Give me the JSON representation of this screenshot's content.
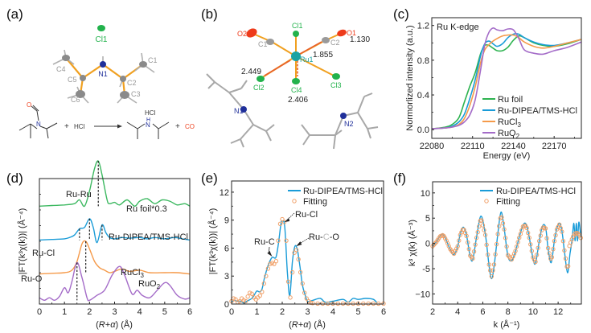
{
  "panels": {
    "a": {
      "label": "(a)",
      "atoms": {
        "cl1": "Cl1",
        "n1": "N1",
        "c1": "C1",
        "c2": "C2",
        "c3": "C3",
        "c4": "C4",
        "c5": "C5",
        "c6": "C6"
      },
      "reaction": {
        "reagent": "HCl",
        "plus1": "+",
        "plus2": "+",
        "product_salt": "HCl",
        "byproduct": "CO",
        "o_atom": "O",
        "n_atom": "N",
        "nh_h": "H",
        "nh_n": "N"
      },
      "colors": {
        "bond": "#f0a020",
        "carbon": "#8a8a8a",
        "nitrogen": "#1f2f9a",
        "chlorine": "#22b24c",
        "oxygen": "#ee4422"
      }
    },
    "b": {
      "label": "(b)",
      "atoms": {
        "o1": "O1",
        "o2": "O2",
        "c1": "C1",
        "c2": "C2",
        "ru1": "Ru1",
        "cl1": "Cl1",
        "cl2": "Cl2",
        "cl3": "Cl3",
        "cl4": "Cl4",
        "n1": "N1",
        "n2": "N2"
      },
      "distances": {
        "co": "1.130",
        "ru_c": "1.855",
        "ru_cl2": "2.449",
        "ru_cl4": "2.406"
      },
      "colors": {
        "ruthenium": "#1aa3a3",
        "arrow": "#e8602a"
      }
    }
  },
  "chart_data": [
    {
      "id": "c",
      "panel_label": "(c)",
      "type": "line",
      "title": "",
      "annotation": "Ru K-edge",
      "xlabel": "Energy (eV)",
      "ylabel": "Normorlized intensity (a.u.)",
      "xlim": [
        22080,
        22190
      ],
      "ylim": [
        -0.1,
        1.29
      ],
      "xticks": [
        22080,
        22110,
        22140,
        22170
      ],
      "xtick_labels": [
        "22080",
        "22110",
        "22140",
        "22170"
      ],
      "yticks": [
        0.0,
        0.4,
        0.8,
        1.2
      ],
      "ytick_labels": [
        "0.0",
        "0.4",
        "0.8",
        "1.2"
      ],
      "legend_position": "bottom-right",
      "series": [
        {
          "name": "Ru foil",
          "legend": "Ru foil",
          "color": "#2db350",
          "x": [
            22080,
            22090,
            22095,
            22100,
            22104,
            22108,
            22112,
            22116,
            22119,
            22122,
            22125,
            22128,
            22132,
            22136,
            22140,
            22144,
            22148,
            22155,
            22162,
            22170,
            22180,
            22190
          ],
          "y": [
            0.01,
            0.03,
            0.06,
            0.14,
            0.32,
            0.5,
            0.66,
            0.88,
            0.97,
            0.97,
            0.94,
            0.91,
            0.91,
            0.95,
            1.03,
            1.08,
            1.06,
            1.0,
            0.97,
            0.96,
            0.99,
            1.04
          ]
        },
        {
          "name": "Ru-DIPEA/TMS-HCl",
          "legend": "Ru-DIPEA/TMS-HCl",
          "color": "#1a9cd8",
          "x": [
            22080,
            22090,
            22095,
            22100,
            22104,
            22108,
            22112,
            22116,
            22119,
            22122,
            22125,
            22128,
            22132,
            22136,
            22140,
            22144,
            22148,
            22155,
            22162,
            22170,
            22180,
            22190
          ],
          "y": [
            0.01,
            0.02,
            0.04,
            0.09,
            0.18,
            0.36,
            0.58,
            0.86,
            0.99,
            1.02,
            0.99,
            0.96,
            0.99,
            1.06,
            1.1,
            1.1,
            1.06,
            1.01,
            0.98,
            0.97,
            1.0,
            1.04
          ]
        },
        {
          "name": "RuCl3",
          "legend": "RuCl₃",
          "legend_main": "RuCl",
          "legend_sub": "3",
          "color": "#f59a4a",
          "x": [
            22080,
            22090,
            22095,
            22100,
            22104,
            22108,
            22112,
            22116,
            22119,
            22122,
            22125,
            22128,
            22132,
            22136,
            22140,
            22144,
            22148,
            22155,
            22162,
            22170,
            22180,
            22190
          ],
          "y": [
            0.01,
            0.02,
            0.03,
            0.06,
            0.13,
            0.28,
            0.5,
            0.78,
            0.92,
            0.98,
            1.02,
            1.05,
            1.08,
            1.09,
            1.09,
            1.06,
            1.01,
            0.96,
            0.94,
            0.96,
            1.0,
            1.04
          ]
        },
        {
          "name": "RuO2",
          "legend": "RuO₂",
          "legend_main": "RuO",
          "legend_sub": "2",
          "color": "#a46cc8",
          "x": [
            22080,
            22090,
            22095,
            22100,
            22104,
            22108,
            22112,
            22116,
            22119,
            22122,
            22125,
            22128,
            22132,
            22136,
            22140,
            22144,
            22148,
            22155,
            22162,
            22170,
            22180,
            22190
          ],
          "y": [
            0.01,
            0.02,
            0.03,
            0.05,
            0.09,
            0.17,
            0.35,
            0.7,
            0.98,
            1.12,
            1.17,
            1.15,
            1.14,
            1.16,
            1.15,
            1.05,
            0.92,
            0.88,
            0.87,
            0.91,
            0.95,
            1.01
          ]
        }
      ]
    },
    {
      "id": "d",
      "panel_label": "(d)",
      "type": "line",
      "title": "",
      "xlabel": "(R+α) (Å)",
      "xlabel_parts": {
        "open": "(",
        "r": "R",
        "plus": "+",
        "alpha": "α",
        "close": ") (Å)"
      },
      "ylabel": "|FT(k³χ(k))| (Å⁻⁴)",
      "xlim": [
        0,
        6
      ],
      "ylim": [
        0,
        1
      ],
      "xticks": [
        0,
        1,
        2,
        3,
        4,
        5,
        6
      ],
      "xtick_labels": [
        "0",
        "1",
        "2",
        "3",
        "4",
        "5",
        "6"
      ],
      "yticks": [],
      "note": "curves vertically offset (arbitrary units, stacked)",
      "series": [
        {
          "name": "Ru foil*0.3",
          "label": "Ru foil*0.3",
          "color": "#3cb860",
          "offset": 0.78,
          "x": [
            0,
            0.5,
            1.0,
            1.4,
            1.6,
            1.8,
            2.0,
            2.2,
            2.35,
            2.5,
            2.7,
            2.8,
            3.0,
            3.2,
            3.5,
            3.8,
            4.0,
            4.3,
            4.6,
            4.9,
            5.2,
            5.5,
            5.8,
            6.0
          ],
          "y": [
            0,
            0.005,
            0.01,
            0.02,
            0.05,
            0.0,
            0.12,
            0.3,
            0.36,
            0.25,
            0.05,
            0.02,
            0.03,
            0.01,
            0.05,
            0.0,
            0.04,
            0.06,
            0.02,
            0.05,
            0.04,
            0.01,
            0.02,
            0.0
          ]
        },
        {
          "name": "Ru-DIPEA/TMS-HCl",
          "label": "Ru-DIPEA/TMS-HCl",
          "color": "#1a9cd8",
          "offset": 0.51,
          "x": [
            0,
            0.5,
            1.0,
            1.2,
            1.4,
            1.6,
            1.8,
            2.0,
            2.15,
            2.3,
            2.5,
            2.65,
            2.8,
            3.0,
            3.3,
            3.6,
            4.0,
            4.3,
            4.6,
            5.0,
            5.4,
            5.7,
            6.0
          ],
          "y": [
            0,
            0.005,
            0.01,
            0.02,
            0.04,
            0.09,
            0.1,
            0.17,
            0.1,
            -0.02,
            0.12,
            0.06,
            0.02,
            0.01,
            0.02,
            0.015,
            0.02,
            0.01,
            0.02,
            0.01,
            0.02,
            0.01,
            0.0
          ]
        },
        {
          "name": "RuCl3",
          "label": "RuCl₃",
          "label_main": "RuCl",
          "label_sub": "3",
          "color": "#f59a4a",
          "offset": 0.24,
          "x": [
            0,
            0.5,
            1.0,
            1.3,
            1.5,
            1.7,
            1.85,
            2.0,
            2.2,
            2.4,
            2.6,
            2.8,
            3.0,
            3.3,
            3.6,
            4.0,
            4.4,
            5.0,
            5.5,
            6.0
          ],
          "y": [
            0,
            0.005,
            0.01,
            0.03,
            0.1,
            0.24,
            0.26,
            0.2,
            0.1,
            0.05,
            0.03,
            0.01,
            0.02,
            0.04,
            0.02,
            0.03,
            0.01,
            0.01,
            0.01,
            0.0
          ]
        },
        {
          "name": "RuO2",
          "label": "RuO₂",
          "label_main": "RuO",
          "label_sub": "2",
          "color": "#a46cc8",
          "offset": 0.03,
          "x": [
            0,
            0.2,
            0.4,
            0.6,
            0.8,
            1.0,
            1.15,
            1.3,
            1.5,
            1.7,
            1.9,
            2.0,
            2.3,
            2.6,
            2.9,
            3.2,
            3.4,
            3.7,
            3.9,
            4.1,
            4.4,
            4.7,
            5.0,
            5.2,
            5.5,
            5.8,
            6.0
          ],
          "y": [
            0.02,
            0.0,
            0.02,
            0.0,
            0.03,
            0.1,
            0.06,
            0.15,
            0.3,
            0.18,
            0.02,
            0.0,
            0.04,
            0.08,
            0.2,
            0.27,
            0.2,
            0.05,
            0.08,
            0.04,
            0.02,
            0.08,
            0.14,
            0.12,
            0.04,
            0.01,
            0.02
          ]
        }
      ],
      "annotations": [
        {
          "text": "Ru-Ru",
          "x": 2.35
        },
        {
          "text": "Ru-Cl",
          "x": 1.85
        },
        {
          "text": "Ru-O",
          "x": 1.5
        }
      ],
      "dashed_markers": [
        {
          "series": "Ru foil*0.3",
          "x": 2.35
        },
        {
          "series": "Ru-DIPEA/TMS-HCl",
          "x": 1.6
        },
        {
          "series": "Ru-DIPEA/TMS-HCl",
          "x": 2.0
        },
        {
          "series": "Ru-DIPEA/TMS-HCl",
          "x": 2.5
        },
        {
          "series": "RuCl3",
          "x": 1.85
        },
        {
          "series": "RuO2",
          "x": 1.5
        }
      ]
    },
    {
      "id": "e",
      "panel_label": "(e)",
      "type": "line",
      "title": "",
      "xlabel": "(R+α) (Å)",
      "ylabel": "|FT(k³χ(k))| (Å⁻⁴)",
      "xlim": [
        0,
        6
      ],
      "ylim": [
        0,
        13.2
      ],
      "xticks": [
        0,
        1,
        2,
        3,
        4,
        5,
        6
      ],
      "xtick_labels": [
        "0",
        "1",
        "2",
        "3",
        "4",
        "5",
        "6"
      ],
      "yticks": [
        0,
        3,
        6,
        9,
        12
      ],
      "ytick_labels": [
        "0",
        "3",
        "6",
        "9",
        "12"
      ],
      "legend_position": "top-right",
      "series": [
        {
          "name": "Ru-DIPEA/TMS-HCl",
          "style": "line",
          "color": "#1a9cd8",
          "x": [
            0,
            0.1,
            0.2,
            0.35,
            0.5,
            0.6,
            0.8,
            0.9,
            1.0,
            1.1,
            1.2,
            1.3,
            1.45,
            1.6,
            1.75,
            1.85,
            1.95,
            2.0,
            2.1,
            2.2,
            2.3,
            2.4,
            2.5,
            2.6,
            2.7,
            2.8,
            2.9,
            3.0,
            3.2,
            3.5,
            3.7,
            4.0,
            4.4,
            4.6,
            4.8,
            5.0,
            5.3,
            5.6,
            5.75
          ],
          "y": [
            0.2,
            0.4,
            0.3,
            0.3,
            0.1,
            0.3,
            0.6,
            1.0,
            1.4,
            1.3,
            1.6,
            2.8,
            4.2,
            5.0,
            5.0,
            6.5,
            8.6,
            8.9,
            8.3,
            3.5,
            0.9,
            4.5,
            6.2,
            5.8,
            4.0,
            2.0,
            1.0,
            0.3,
            0.4,
            0.6,
            0.2,
            0.3,
            0.5,
            0.2,
            0.6,
            0.5,
            0.6,
            0.5,
            0.1
          ]
        },
        {
          "name": "Fitting",
          "style": "circles",
          "color": "#f0a068",
          "x": [
            0.0,
            0.08,
            0.16,
            0.24,
            0.32,
            0.4,
            0.48,
            0.56,
            0.64,
            0.72,
            0.8,
            0.88,
            0.96,
            1.04,
            1.12,
            1.2,
            1.28,
            1.36,
            1.44,
            1.52,
            1.6,
            1.68,
            1.76,
            1.84,
            1.92,
            2.0,
            2.08,
            2.16,
            2.24,
            2.32,
            2.4,
            2.48,
            2.56,
            2.64,
            2.72,
            2.8,
            2.88,
            2.96,
            3.04,
            3.12,
            3.2,
            3.4,
            3.6,
            3.8,
            4.0,
            4.2,
            4.4,
            4.6,
            4.8,
            5.0,
            5.2,
            5.4,
            5.6,
            5.8,
            6.0
          ],
          "y": [
            0.3,
            0.6,
            0.5,
            0.2,
            0.3,
            0.6,
            0.4,
            0.3,
            0.8,
            1.2,
            1.1,
            0.7,
            0.5,
            0.7,
            0.9,
            1.3,
            2.2,
            3.0,
            3.8,
            4.3,
            4.4,
            4.3,
            4.6,
            6.8,
            8.6,
            9.1,
            8.8,
            6.8,
            2.4,
            0.7,
            3.4,
            5.5,
            5.8,
            4.8,
            3.4,
            2.2,
            1.2,
            0.6,
            0.3,
            0.15,
            0.1,
            0.05,
            0.05,
            0.05,
            0.05,
            0.05,
            0.05,
            0.05,
            0.05,
            0.05,
            0.05,
            0.05,
            0.05,
            0.05,
            0.05
          ]
        }
      ],
      "annotations": [
        {
          "text": "Ru-Cl",
          "x": 2.05,
          "y": 8.8
        },
        {
          "text": "Ru-C",
          "x": 1.65,
          "y": 5.0
        },
        {
          "text": "Ru-C-O",
          "parts": [
            "Ru-",
            "C",
            "-O"
          ],
          "x": 2.5,
          "y": 6.2
        }
      ]
    },
    {
      "id": "f",
      "panel_label": "(f)",
      "type": "line",
      "title": "",
      "xlabel": "k (Å⁻¹)",
      "ylabel": "k³ χ(k) (Å⁻³)",
      "xlim": [
        2,
        13.85
      ],
      "ylim": [
        -12,
        12.2
      ],
      "xticks": [
        2,
        4,
        6,
        8,
        10,
        12
      ],
      "xtick_labels": [
        "2",
        "4",
        "6",
        "8",
        "10",
        "12"
      ],
      "yticks": [
        -10,
        -5,
        0,
        5,
        10
      ],
      "ytick_labels": [
        "−10",
        "-5",
        "0",
        "5",
        "10"
      ],
      "legend_position": "top-right",
      "series": [
        {
          "name": "Ru-DIPEA/TMS-HCl",
          "style": "line",
          "color": "#1a9cd8",
          "x": [
            2.0,
            2.3,
            2.6,
            2.85,
            3.1,
            3.4,
            3.7,
            4.0,
            4.2,
            4.45,
            4.7,
            5.0,
            5.2,
            5.5,
            5.85,
            6.2,
            6.5,
            6.7,
            6.9,
            7.2,
            7.45,
            7.7,
            8.0,
            8.3,
            8.6,
            8.9,
            9.2,
            9.45,
            9.7,
            10.0,
            10.2,
            10.5,
            10.75,
            11.0,
            11.2,
            11.45,
            11.7,
            11.9,
            12.1,
            12.3,
            12.5,
            12.75,
            12.95,
            13.1,
            13.25,
            13.35,
            13.45,
            13.55,
            13.65,
            13.8
          ],
          "y": [
            -0.6,
            0.3,
            1.5,
            1.8,
            0.6,
            -1.2,
            -2.2,
            -0.6,
            1.8,
            3.2,
            1.6,
            -2.6,
            -3.2,
            1.2,
            5.4,
            1.8,
            -4.5,
            -7.0,
            -4.5,
            2.0,
            6.2,
            3.0,
            -2.5,
            -3.4,
            -1.6,
            1.2,
            3.6,
            3.8,
            1.2,
            -3.0,
            -3.9,
            0.5,
            3.4,
            3.2,
            -1.0,
            -3.8,
            0.5,
            3.0,
            4.0,
            2.5,
            -1.5,
            -5.8,
            -2.0,
            0.5,
            4.0,
            0.5,
            4.0,
            0.5,
            4.2,
            1.5
          ]
        },
        {
          "name": "Fitting",
          "style": "circles",
          "color": "#f0a068",
          "x": [],
          "y": [],
          "generated_note": "circles follow the same oscillation sampled at Δk = 0.1"
        }
      ]
    }
  ]
}
